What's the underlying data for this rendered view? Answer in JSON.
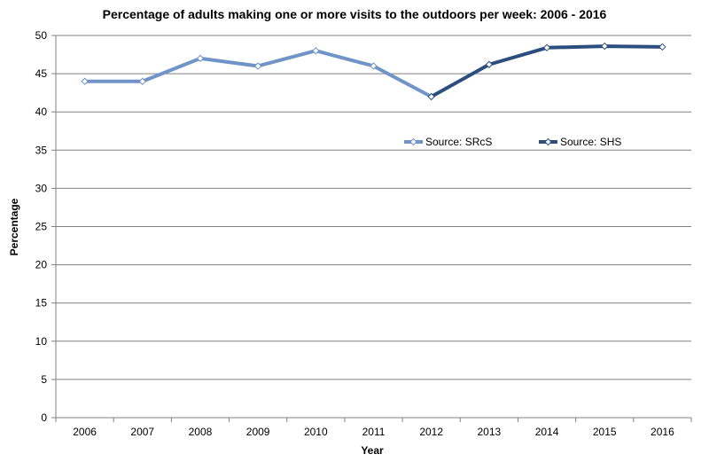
{
  "chart_data": {
    "type": "line",
    "title": "Percentage of adults making one or more visits to the outdoors per week: 2006 - 2016",
    "xlabel": "Year",
    "ylabel": "Percentage",
    "categories": [
      "2006",
      "2007",
      "2008",
      "2009",
      "2010",
      "2011",
      "2012",
      "2013",
      "2014",
      "2015",
      "2016"
    ],
    "ylim": [
      0,
      50
    ],
    "yticks": [
      0,
      5,
      10,
      15,
      20,
      25,
      30,
      35,
      40,
      45,
      50
    ],
    "grid": "horizontal",
    "legend_position": "inside-right",
    "series": [
      {
        "name": "Source: SRcS",
        "color": "#7094c8",
        "points": [
          {
            "x": "2006",
            "y": 44
          },
          {
            "x": "2007",
            "y": 44
          },
          {
            "x": "2008",
            "y": 47
          },
          {
            "x": "2009",
            "y": 46
          },
          {
            "x": "2010",
            "y": 48
          },
          {
            "x": "2011",
            "y": 46
          },
          {
            "x": "2012",
            "y": 42
          }
        ]
      },
      {
        "name": "Source: SHS",
        "color": "#2c4e7f",
        "points": [
          {
            "x": "2012",
            "y": 42
          },
          {
            "x": "2013",
            "y": 46.2
          },
          {
            "x": "2014",
            "y": 48.4
          },
          {
            "x": "2015",
            "y": 48.6
          },
          {
            "x": "2016",
            "y": 48.5
          }
        ]
      }
    ]
  }
}
